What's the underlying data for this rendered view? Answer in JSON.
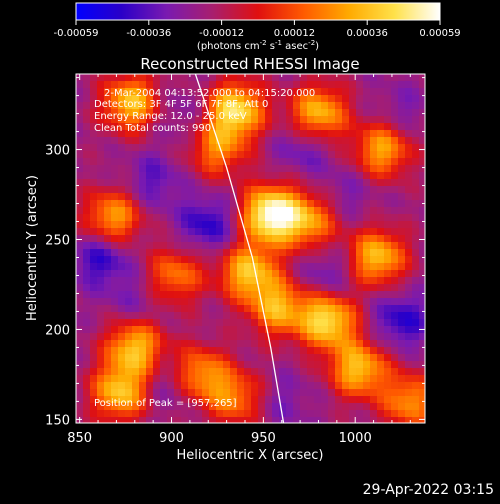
{
  "chart_data": {
    "type": "heatmap",
    "title": "Reconstructed RHESSI Image",
    "xlabel": "Heliocentric X (arcsec)",
    "ylabel": "Heliocentric Y (arcsec)",
    "xlim": [
      848,
      1038
    ],
    "ylim": [
      148,
      342
    ],
    "x_ticks": [
      850,
      900,
      950,
      1000
    ],
    "y_ticks": [
      150,
      200,
      250,
      300
    ],
    "colorbar": {
      "label_main": "(photons cm",
      "label_sup1": "-2",
      "label_mid1": " s",
      "label_sup2": "-1",
      "label_mid2": " asec",
      "label_sup3": "-2",
      "label_end": ")",
      "range": [
        -0.00059,
        0.00059
      ],
      "ticks": [
        "-0.00059",
        "-0.00036",
        "-0.00012",
        "0.00012",
        "0.00036",
        "0.00059"
      ],
      "colors": [
        "#0000ff",
        "#2a00c8",
        "#7a1ab0",
        "#a81e6e",
        "#e01010",
        "#ff5a00",
        "#ffaa00",
        "#ffe14a",
        "#ffffff"
      ]
    },
    "annotations": {
      "time": "2-Mar-2004 04:13:52.000 to 04:15:20.000",
      "detectors": "Detectors: 3F 4F 5F 6F 7F 8F, Att 0",
      "energy": "Energy Range: 12.0 - 25.0 keV",
      "clean": "Clean     Total counts: 990",
      "peak": "Position of Peak = [957,265]"
    },
    "peak": [
      957,
      265
    ],
    "limb_curve": [
      [
        913,
        342
      ],
      [
        930,
        290
      ],
      [
        944,
        240
      ],
      [
        954,
        190
      ],
      [
        961,
        148
      ]
    ],
    "hot_spots": [
      {
        "x": 954,
        "y": 264,
        "value": 0.00059
      },
      {
        "x": 935,
        "y": 322,
        "value": 0.00045
      },
      {
        "x": 878,
        "y": 326,
        "value": 0.00036
      },
      {
        "x": 868,
        "y": 262,
        "value": 0.0003
      },
      {
        "x": 942,
        "y": 232,
        "value": 0.00036
      },
      {
        "x": 958,
        "y": 212,
        "value": 0.0003
      },
      {
        "x": 880,
        "y": 190,
        "value": 0.00036
      },
      {
        "x": 872,
        "y": 165,
        "value": 0.00036
      },
      {
        "x": 915,
        "y": 175,
        "value": 0.00028
      },
      {
        "x": 980,
        "y": 320,
        "value": 0.00036
      },
      {
        "x": 1015,
        "y": 300,
        "value": 0.0003
      },
      {
        "x": 1012,
        "y": 240,
        "value": 0.00036
      },
      {
        "x": 985,
        "y": 205,
        "value": 0.00045
      },
      {
        "x": 1002,
        "y": 178,
        "value": 0.00036
      },
      {
        "x": 935,
        "y": 162,
        "value": 0.0002
      },
      {
        "x": 1030,
        "y": 160,
        "value": 0.00025
      },
      {
        "x": 975,
        "y": 260,
        "value": 0.00025
      },
      {
        "x": 902,
        "y": 230,
        "value": 0.0002
      },
      {
        "x": 925,
        "y": 300,
        "value": 0.0002
      }
    ],
    "cold_spots": [
      {
        "x": 862,
        "y": 240,
        "value": -0.00045
      },
      {
        "x": 920,
        "y": 258,
        "value": -0.00045
      },
      {
        "x": 890,
        "y": 282,
        "value": -0.00036
      },
      {
        "x": 972,
        "y": 302,
        "value": -0.00036
      },
      {
        "x": 1025,
        "y": 320,
        "value": -0.0003
      },
      {
        "x": 1025,
        "y": 205,
        "value": -0.00045
      },
      {
        "x": 985,
        "y": 230,
        "value": -0.00036
      },
      {
        "x": 900,
        "y": 170,
        "value": -0.00036
      },
      {
        "x": 960,
        "y": 160,
        "value": -0.0003
      },
      {
        "x": 905,
        "y": 320,
        "value": -0.0003
      },
      {
        "x": 880,
        "y": 215,
        "value": -0.0003
      },
      {
        "x": 995,
        "y": 275,
        "value": -0.0003
      }
    ]
  },
  "footer": {
    "timestamp": "29-Apr-2022 03:15"
  }
}
